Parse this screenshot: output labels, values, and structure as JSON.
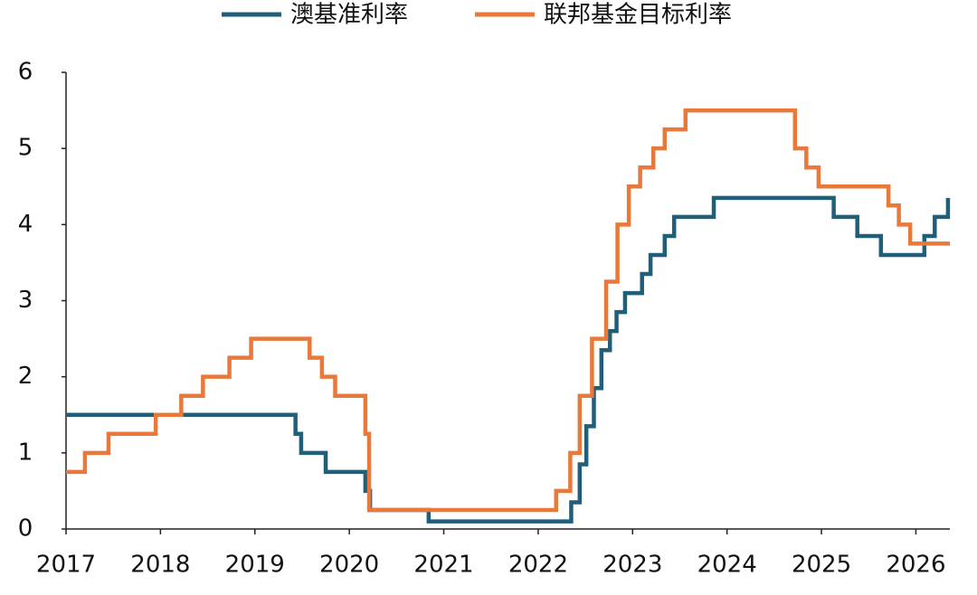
{
  "chart_data": {
    "type": "line",
    "series": [
      {
        "name": "澳基准利率",
        "color": "#1f5f7a",
        "x": [
          2017,
          2019.43,
          2019.43,
          2019.49,
          2019.49,
          2019.75,
          2019.75,
          2020.17,
          2020.17,
          2020.22,
          2020.22,
          2020.84,
          2020.84,
          2022.35,
          2022.35,
          2022.44,
          2022.44,
          2022.51,
          2022.51,
          2022.59,
          2022.59,
          2022.67,
          2022.67,
          2022.76,
          2022.76,
          2022.83,
          2022.83,
          2022.92,
          2022.92,
          2023.1,
          2023.1,
          2023.19,
          2023.19,
          2023.34,
          2023.34,
          2023.44,
          2023.44,
          2023.86,
          2023.86,
          2025.13,
          2025.13,
          2025.38,
          2025.38,
          2025.63,
          2025.63,
          2026.09,
          2026.09,
          2026.2,
          2026.2,
          2026.34,
          2026.34
        ],
        "values": [
          1.5,
          1.5,
          1.25,
          1.25,
          1,
          1,
          0.75,
          0.75,
          0.5,
          0.5,
          0.25,
          0.25,
          0.1,
          0.1,
          0.35,
          0.35,
          0.85,
          0.85,
          1.35,
          1.35,
          1.85,
          1.85,
          2.35,
          2.35,
          2.6,
          2.6,
          2.85,
          2.85,
          3.1,
          3.1,
          3.35,
          3.35,
          3.6,
          3.6,
          3.85,
          3.85,
          4.1,
          4.1,
          4.35,
          4.35,
          4.1,
          4.1,
          3.85,
          3.85,
          3.6,
          3.6,
          3.85,
          3.85,
          4.1,
          4.1,
          4.35
        ]
      },
      {
        "name": "联邦基金目标利率",
        "color": "#e8793a",
        "x": [
          2017,
          2017.2,
          2017.2,
          2017.45,
          2017.45,
          2017.95,
          2017.95,
          2018.22,
          2018.22,
          2018.45,
          2018.45,
          2018.73,
          2018.73,
          2018.96,
          2018.96,
          2019.58,
          2019.58,
          2019.71,
          2019.71,
          2019.85,
          2019.85,
          2020.17,
          2020.17,
          2020.21,
          2020.21,
          2022.19,
          2022.19,
          2022.34,
          2022.34,
          2022.44,
          2022.44,
          2022.57,
          2022.57,
          2022.72,
          2022.72,
          2022.84,
          2022.84,
          2022.96,
          2022.96,
          2023.08,
          2023.08,
          2023.22,
          2023.22,
          2023.34,
          2023.34,
          2023.56,
          2023.56,
          2024.72,
          2024.72,
          2024.84,
          2024.84,
          2024.97,
          2024.97,
          2025.71,
          2025.71,
          2025.82,
          2025.82,
          2025.94,
          2025.94,
          2026.36
        ],
        "values": [
          0.75,
          0.75,
          1,
          1,
          1.25,
          1.25,
          1.5,
          1.5,
          1.75,
          1.75,
          2,
          2,
          2.25,
          2.25,
          2.5,
          2.5,
          2.25,
          2.25,
          2,
          2,
          1.75,
          1.75,
          1.25,
          1.25,
          0.25,
          0.25,
          0.5,
          0.5,
          1,
          1,
          1.75,
          1.75,
          2.5,
          2.5,
          3.25,
          3.25,
          4,
          4,
          4.5,
          4.5,
          4.75,
          4.75,
          5,
          5,
          5.25,
          5.25,
          5.5,
          5.5,
          5,
          5,
          4.75,
          4.75,
          4.5,
          4.5,
          4.25,
          4.25,
          4,
          4,
          3.75,
          3.75
        ]
      }
    ],
    "xlim": [
      2017,
      2026.36
    ],
    "xticks": [
      2017,
      2018,
      2019,
      2020,
      2021,
      2022,
      2023,
      2024,
      2025,
      2026
    ],
    "ylim": [
      0,
      6
    ],
    "yticks": [
      0,
      1,
      2,
      3,
      4,
      5,
      6
    ],
    "grid": false
  }
}
